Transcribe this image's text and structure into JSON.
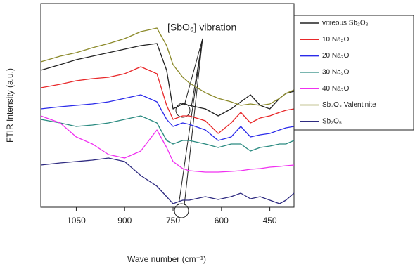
{
  "chart_data": {
    "type": "line",
    "annotation": "[SbO₆] vibration",
    "x_label": "Wave number (cm⁻¹)",
    "y_label": "FTIR Intensity (a.u.)",
    "x": [
      1160,
      1100,
      1050,
      1000,
      950,
      900,
      850,
      800,
      770,
      750,
      720,
      700,
      650,
      610,
      570,
      540,
      510,
      480,
      450,
      420,
      400,
      375
    ],
    "xlim": [
      1160,
      375
    ],
    "xticks": [
      1050,
      900,
      750,
      600,
      450
    ],
    "ylim": [
      0,
      290
    ],
    "series": [
      {
        "name": "vitreous Sb₂O₃",
        "color": "#222222",
        "values": [
          195,
          203,
          210,
          215,
          220,
          225,
          230,
          233,
          195,
          140,
          147,
          145,
          140,
          130,
          140,
          150,
          160,
          145,
          140,
          155,
          162,
          165
        ]
      },
      {
        "name": "10 Na₂O",
        "color": "#e8282a",
        "values": [
          170,
          175,
          180,
          183,
          185,
          190,
          200,
          190,
          145,
          125,
          130,
          130,
          123,
          105,
          120,
          135,
          120,
          127,
          130,
          135,
          138,
          140
        ]
      },
      {
        "name": "20 Na₂O",
        "color": "#2b2bea",
        "values": [
          140,
          143,
          145,
          147,
          150,
          155,
          160,
          150,
          125,
          115,
          120,
          118,
          110,
          95,
          100,
          115,
          100,
          103,
          105,
          110,
          113,
          115
        ]
      },
      {
        "name": "30 Na₂O",
        "color": "#2a8a80",
        "values": [
          125,
          120,
          115,
          117,
          120,
          125,
          130,
          120,
          95,
          90,
          95,
          95,
          90,
          85,
          90,
          90,
          80,
          85,
          87,
          90,
          90,
          95
        ]
      },
      {
        "name": "40 Na₂O",
        "color": "#f030f0",
        "values": [
          130,
          120,
          100,
          90,
          75,
          70,
          80,
          110,
          85,
          65,
          55,
          52,
          50,
          50,
          51,
          52,
          54,
          55,
          57,
          58,
          59,
          60
        ]
      },
      {
        "name": "Sb₂O₃ Valentinite",
        "color": "#8c8a2a",
        "values": [
          207,
          215,
          220,
          227,
          233,
          240,
          250,
          255,
          230,
          203,
          185,
          177,
          163,
          155,
          150,
          145,
          147,
          145,
          147,
          155,
          162,
          167
        ]
      },
      {
        "name": "Sb₂O₅",
        "color": "#2e2a80",
        "values": [
          60,
          63,
          65,
          67,
          70,
          65,
          45,
          30,
          15,
          5,
          10,
          10,
          15,
          11,
          15,
          20,
          12,
          15,
          10,
          5,
          10,
          20
        ]
      }
    ]
  }
}
